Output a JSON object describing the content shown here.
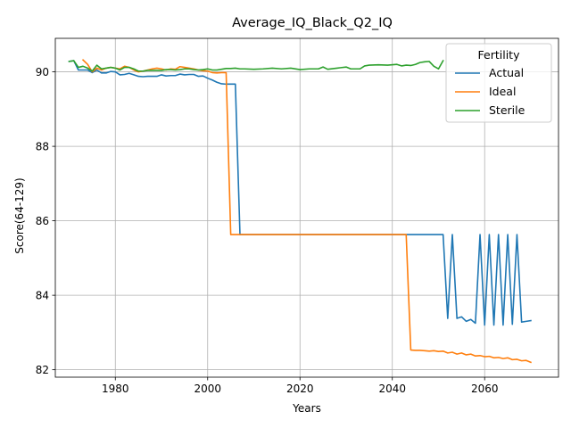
{
  "chart_data": {
    "type": "line",
    "title": "Average_IQ_Black_Q2_IQ",
    "xlabel": "Years",
    "ylabel": "Score(64-129)",
    "xlim": [
      1967,
      2076
    ],
    "ylim": [
      81.8,
      90.9
    ],
    "xticks": [
      1980,
      2000,
      2020,
      2040,
      2060
    ],
    "yticks": [
      82,
      84,
      86,
      88,
      90
    ],
    "grid": true,
    "legend": {
      "title": "Fertility",
      "placement": "top-right"
    },
    "series": [
      {
        "name": "Actual",
        "color": "#1f77b4",
        "x": [
          1970,
          1971,
          1972,
          1973,
          1974,
          1975,
          1976,
          1977,
          1978,
          1979,
          1980,
          1981,
          1982,
          1983,
          1984,
          1985,
          1986,
          1987,
          1988,
          1989,
          1990,
          1991,
          1992,
          1993,
          1994,
          1995,
          1996,
          1997,
          1998,
          1999,
          2000,
          2001,
          2002,
          2003,
          2004,
          2005,
          2006,
          2007,
          2008,
          2010,
          2015,
          2020,
          2025,
          2030,
          2035,
          2040,
          2045,
          2048,
          2049,
          2050,
          2051,
          2052,
          2053,
          2054,
          2055,
          2056,
          2057,
          2058,
          2059,
          2060,
          2061,
          2062,
          2063,
          2064,
          2065,
          2066,
          2067,
          2068,
          2069,
          2070
        ],
        "y": [
          90.28,
          90.3,
          90.05,
          90.05,
          90.05,
          89.98,
          90.05,
          89.97,
          89.97,
          90.01,
          90.0,
          89.92,
          89.93,
          89.96,
          89.92,
          89.88,
          89.87,
          89.88,
          89.88,
          89.88,
          89.92,
          89.89,
          89.9,
          89.9,
          89.94,
          89.92,
          89.93,
          89.93,
          89.88,
          89.89,
          89.83,
          89.78,
          89.72,
          89.68,
          89.67,
          89.67,
          89.67,
          85.63,
          85.63,
          85.63,
          85.63,
          85.63,
          85.63,
          85.63,
          85.63,
          85.63,
          85.63,
          85.63,
          85.63,
          85.63,
          85.63,
          83.38,
          85.63,
          83.38,
          83.42,
          83.3,
          83.35,
          83.25,
          85.63,
          83.2,
          85.63,
          83.2,
          85.63,
          83.2,
          85.63,
          83.22,
          85.63,
          83.28,
          83.3,
          83.32
        ]
      },
      {
        "name": "Ideal",
        "color": "#ff7f0e",
        "x": [
          1973,
          1974,
          1975,
          1976,
          1977,
          1978,
          1979,
          1980,
          1981,
          1982,
          1983,
          1984,
          1985,
          1986,
          1987,
          1988,
          1989,
          1990,
          1991,
          1992,
          1993,
          1994,
          1995,
          1996,
          1997,
          1998,
          1999,
          2000,
          2001,
          2002,
          2003,
          2004,
          2005,
          2010,
          2020,
          2030,
          2040,
          2043,
          2044,
          2045,
          2046,
          2047,
          2048,
          2049,
          2050,
          2051,
          2052,
          2053,
          2054,
          2055,
          2056,
          2057,
          2058,
          2059,
          2060,
          2061,
          2062,
          2063,
          2064,
          2065,
          2066,
          2067,
          2068,
          2069,
          2070
        ],
        "y": [
          90.32,
          90.2,
          90.0,
          90.1,
          90.05,
          90.1,
          90.12,
          90.1,
          90.08,
          90.15,
          90.12,
          90.05,
          90.0,
          90.02,
          90.05,
          90.08,
          90.1,
          90.08,
          90.05,
          90.08,
          90.07,
          90.14,
          90.12,
          90.1,
          90.08,
          90.05,
          90.03,
          90.02,
          89.98,
          89.97,
          89.98,
          89.98,
          85.63,
          85.63,
          85.63,
          85.63,
          85.63,
          85.63,
          82.53,
          82.52,
          82.52,
          82.51,
          82.5,
          82.51,
          82.49,
          82.5,
          82.45,
          82.47,
          82.42,
          82.45,
          82.4,
          82.42,
          82.37,
          82.38,
          82.35,
          82.36,
          82.32,
          82.33,
          82.3,
          82.32,
          82.27,
          82.28,
          82.24,
          82.25,
          82.2
        ]
      },
      {
        "name": "Sterile",
        "color": "#2ca02c",
        "x": [
          1970,
          1971,
          1972,
          1973,
          1974,
          1975,
          1976,
          1977,
          1978,
          1979,
          1980,
          1981,
          1982,
          1983,
          1984,
          1985,
          1986,
          1987,
          1988,
          1989,
          1990,
          1991,
          1992,
          1993,
          1994,
          1995,
          1996,
          1997,
          1998,
          1999,
          2000,
          2001,
          2002,
          2003,
          2004,
          2005,
          2006,
          2007,
          2008,
          2010,
          2012,
          2014,
          2016,
          2018,
          2020,
          2022,
          2024,
          2025,
          2026,
          2028,
          2030,
          2031,
          2033,
          2034,
          2035,
          2037,
          2039,
          2041,
          2042,
          2043,
          2044,
          2045,
          2046,
          2047,
          2048,
          2049,
          2050,
          2051
        ],
        "y": [
          90.28,
          90.3,
          90.12,
          90.15,
          90.1,
          90.02,
          90.18,
          90.08,
          90.1,
          90.12,
          90.1,
          90.05,
          90.12,
          90.12,
          90.08,
          90.02,
          90.02,
          90.04,
          90.04,
          90.04,
          90.04,
          90.06,
          90.06,
          90.05,
          90.06,
          90.08,
          90.08,
          90.06,
          90.05,
          90.06,
          90.08,
          90.05,
          90.05,
          90.07,
          90.09,
          90.09,
          90.1,
          90.08,
          90.08,
          90.07,
          90.08,
          90.1,
          90.08,
          90.1,
          90.06,
          90.08,
          90.08,
          90.13,
          90.07,
          90.1,
          90.13,
          90.08,
          90.08,
          90.16,
          90.18,
          90.19,
          90.18,
          90.2,
          90.16,
          90.18,
          90.17,
          90.2,
          90.25,
          90.27,
          90.28,
          90.15,
          90.08,
          90.3
        ]
      }
    ]
  }
}
